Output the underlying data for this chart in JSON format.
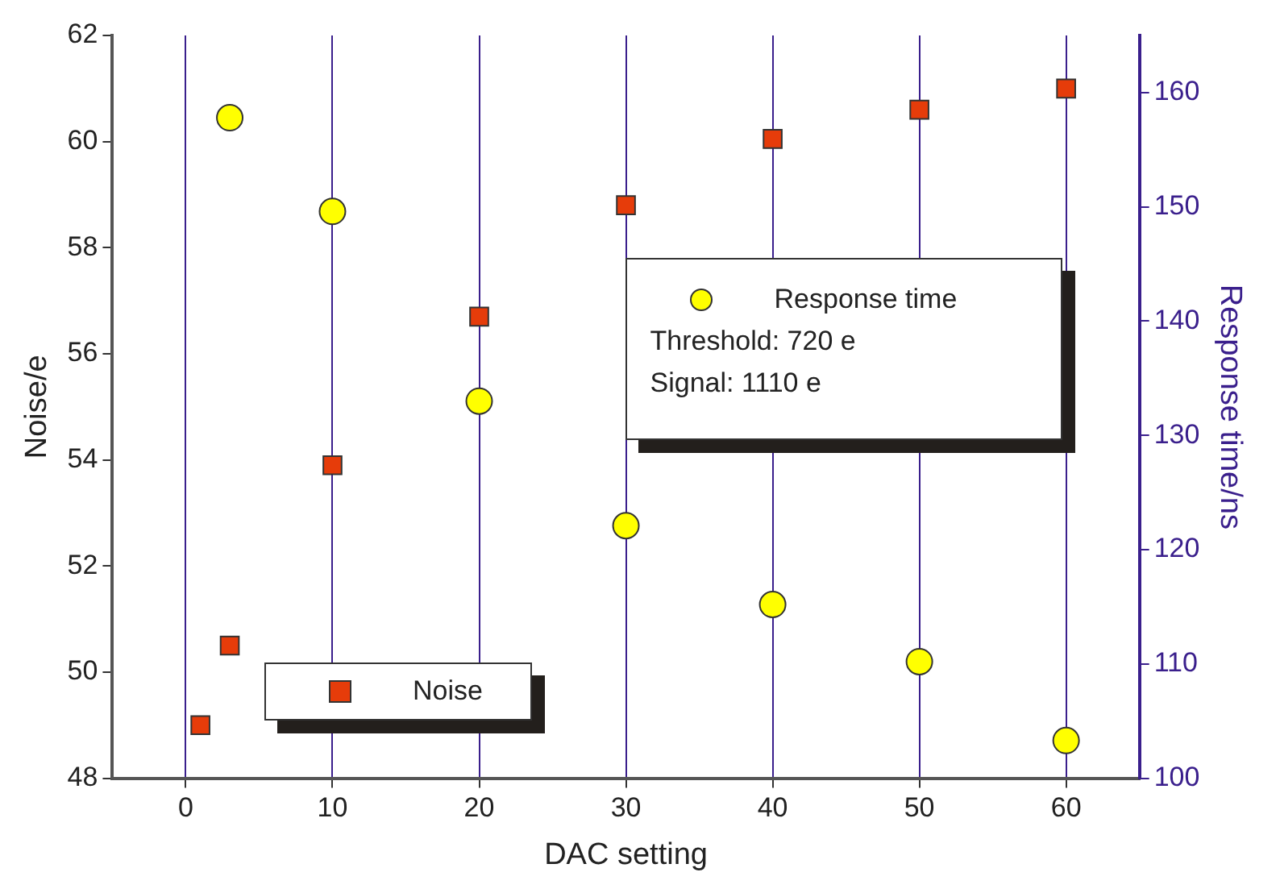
{
  "chart_data": {
    "type": "scatter",
    "xlabel": "DAC setting",
    "ylabel": "Noise/e",
    "y2label": "Response time/ns",
    "xlim": [
      -5,
      65
    ],
    "xticks": [
      0,
      10,
      20,
      30,
      40,
      50,
      60
    ],
    "ylim": [
      48,
      62
    ],
    "yticks": [
      48,
      50,
      52,
      54,
      56,
      58,
      60,
      62
    ],
    "y2lim": [
      100,
      165
    ],
    "y2ticks": [
      100,
      110,
      120,
      130,
      140,
      150,
      160
    ],
    "grid": "x",
    "legend": "right",
    "series": [
      {
        "name": "Noise",
        "color": "#e63c0a",
        "marker": "square",
        "x": [
          1,
          3,
          10,
          20,
          30,
          40,
          50,
          60
        ],
        "values": [
          49.0,
          50.5,
          53.9,
          56.7,
          58.8,
          60.05,
          60.6,
          61.0
        ]
      },
      {
        "name": "Response time",
        "color": "#ffff00",
        "marker": "circle",
        "axis": "y2",
        "x": [
          3,
          10,
          20,
          30,
          40,
          50,
          60
        ],
        "values": [
          157.8,
          149.6,
          133.0,
          122.1,
          115.2,
          110.2,
          103.3
        ]
      }
    ],
    "annotations": [
      "Threshold: 720 e",
      "Signal: 1110 e"
    ]
  }
}
